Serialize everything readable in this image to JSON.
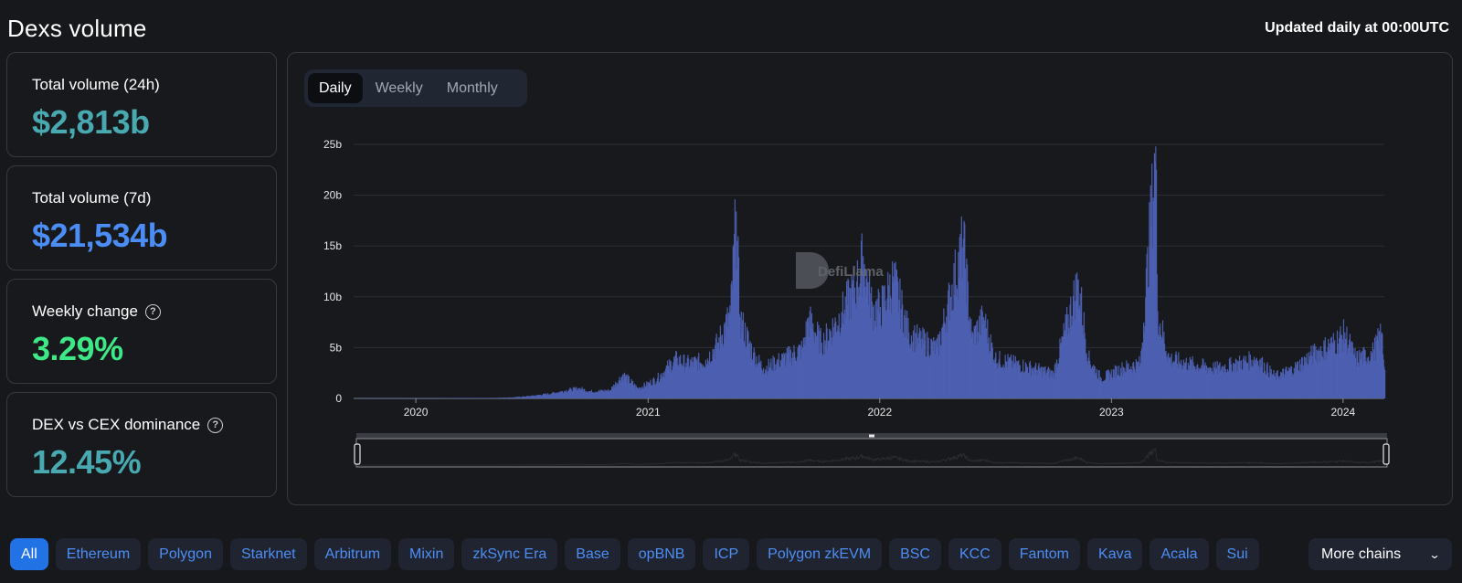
{
  "header": {
    "title": "Dexs volume",
    "update_note": "Updated daily at 00:00UTC"
  },
  "stats": [
    {
      "label": "Total volume (24h)",
      "value": "$2,813b",
      "color": "#48a9b0",
      "help": false
    },
    {
      "label": "Total volume (7d)",
      "value": "$21,534b",
      "color": "#4c8df5",
      "help": false
    },
    {
      "label": "Weekly change",
      "value": "3.29%",
      "color": "#3ee887",
      "help": true
    },
    {
      "label": "DEX vs CEX dominance",
      "value": "12.45%",
      "color": "#48a9b0",
      "help": true
    }
  ],
  "tabs": [
    {
      "label": "Daily",
      "active": true
    },
    {
      "label": "Weekly",
      "active": false
    },
    {
      "label": "Monthly",
      "active": false
    }
  ],
  "watermark": "DefiLlama",
  "chains": {
    "items": [
      "All",
      "Ethereum",
      "Polygon",
      "Starknet",
      "Arbitrum",
      "Mixin",
      "zkSync Era",
      "Base",
      "opBNB",
      "ICP",
      "Polygon zkEVM",
      "BSC",
      "KCC",
      "Fantom",
      "Kava",
      "Acala",
      "Sui"
    ],
    "active": "All",
    "more_label": "More chains"
  },
  "chart_data": {
    "type": "bar",
    "title": "",
    "xlabel": "",
    "ylabel": "",
    "x_range": [
      "2019-09-25",
      "2024-03-06"
    ],
    "ylim": [
      0,
      25
    ],
    "y_ticks": [
      "0",
      "5b",
      "10b",
      "15b",
      "20b",
      "25b"
    ],
    "x_ticks": [
      "2020",
      "2021",
      "2022",
      "2023",
      "2024"
    ],
    "grid": true,
    "bar_color": "#4c5fb0",
    "series": [
      {
        "values_unit": "billions USD (daily volume, approximate)",
        "points": [
          [
            "2019-09-25",
            0.01
          ],
          [
            "2020-01-01",
            0.02
          ],
          [
            "2020-05-01",
            0.05
          ],
          [
            "2020-06-01",
            0.1
          ],
          [
            "2020-07-01",
            0.25
          ],
          [
            "2020-08-01",
            0.5
          ],
          [
            "2020-09-01",
            0.9
          ],
          [
            "2020-09-15",
            1.0
          ],
          [
            "2020-10-01",
            0.7
          ],
          [
            "2020-11-01",
            0.8
          ],
          [
            "2020-11-22",
            2.4
          ],
          [
            "2020-12-15",
            1.0
          ],
          [
            "2021-01-01",
            1.5
          ],
          [
            "2021-01-15",
            2.0
          ],
          [
            "2021-02-01",
            3.2
          ],
          [
            "2021-02-15",
            4.0
          ],
          [
            "2021-03-01",
            3.5
          ],
          [
            "2021-04-01",
            3.8
          ],
          [
            "2021-04-20",
            5.5
          ],
          [
            "2021-05-10",
            8.5
          ],
          [
            "2021-05-19",
            18.4
          ],
          [
            "2021-05-25",
            8.0
          ],
          [
            "2021-06-15",
            4.5
          ],
          [
            "2021-07-01",
            3.0
          ],
          [
            "2021-08-01",
            4.0
          ],
          [
            "2021-09-01",
            5.0
          ],
          [
            "2021-09-10",
            8.0
          ],
          [
            "2021-10-01",
            5.5
          ],
          [
            "2021-11-01",
            8.5
          ],
          [
            "2021-11-25",
            11.5
          ],
          [
            "2021-12-05",
            14.0
          ],
          [
            "2021-12-20",
            9.0
          ],
          [
            "2022-01-01",
            9.0
          ],
          [
            "2022-01-22",
            12.0
          ],
          [
            "2022-02-15",
            6.5
          ],
          [
            "2022-03-01",
            6.0
          ],
          [
            "2022-04-01",
            5.0
          ],
          [
            "2022-05-12",
            15.7
          ],
          [
            "2022-05-25",
            6.0
          ],
          [
            "2022-06-13",
            8.0
          ],
          [
            "2022-07-01",
            4.0
          ],
          [
            "2022-08-01",
            3.5
          ],
          [
            "2022-09-01",
            3.0
          ],
          [
            "2022-10-01",
            2.5
          ],
          [
            "2022-11-09",
            11.7
          ],
          [
            "2022-11-25",
            4.0
          ],
          [
            "2022-12-15",
            2.0
          ],
          [
            "2023-01-15",
            3.0
          ],
          [
            "2023-02-15",
            3.5
          ],
          [
            "2023-03-11",
            24.8
          ],
          [
            "2023-03-14",
            8.6
          ],
          [
            "2023-04-01",
            4.0
          ],
          [
            "2023-05-01",
            3.5
          ],
          [
            "2023-06-15",
            3.0
          ],
          [
            "2023-08-17",
            4.0
          ],
          [
            "2023-09-15",
            2.2
          ],
          [
            "2023-10-15",
            3.0
          ],
          [
            "2023-11-15",
            4.5
          ],
          [
            "2023-12-15",
            5.5
          ],
          [
            "2024-01-03",
            6.5
          ],
          [
            "2024-01-20",
            4.0
          ],
          [
            "2024-02-15",
            4.5
          ],
          [
            "2024-03-01",
            6.5
          ],
          [
            "2024-03-06",
            2.8
          ]
        ]
      }
    ]
  }
}
